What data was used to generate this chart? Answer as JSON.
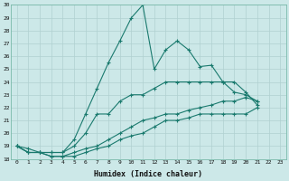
{
  "xlabel": "Humidex (Indice chaleur)",
  "bg_color": "#cce8e8",
  "line_color": "#1a7a6e",
  "grid_color": "#b0d0d0",
  "xlim": [
    -0.5,
    23.5
  ],
  "ylim": [
    18,
    30
  ],
  "yticks": [
    18,
    19,
    20,
    21,
    22,
    23,
    24,
    25,
    26,
    27,
    28,
    29,
    30
  ],
  "xticks": [
    0,
    1,
    2,
    3,
    4,
    5,
    6,
    7,
    8,
    9,
    10,
    11,
    12,
    13,
    14,
    15,
    16,
    17,
    18,
    19,
    20,
    21,
    22,
    23
  ],
  "series": [
    [
      19,
      18.8,
      18.5,
      18.5,
      18.5,
      19.5,
      21.5,
      23.5,
      25.5,
      27.2,
      29.0,
      30.0,
      25.0,
      26.5,
      27.2,
      26.5,
      25.2,
      25.3,
      24.0,
      23.2,
      23.0,
      22.5
    ],
    [
      19,
      18.5,
      18.5,
      18.5,
      18.5,
      19.0,
      20.0,
      21.5,
      21.5,
      22.5,
      23.0,
      23.0,
      23.5,
      24.0,
      24.0,
      24.0,
      24.0,
      24.0,
      24.0,
      24.0,
      23.2,
      22.2
    ],
    [
      19,
      18.5,
      18.5,
      18.2,
      18.2,
      18.5,
      18.8,
      19.0,
      19.5,
      20.0,
      20.5,
      21.0,
      21.2,
      21.5,
      21.5,
      21.8,
      22.0,
      22.2,
      22.5,
      22.5,
      22.8,
      22.5
    ],
    [
      19,
      18.5,
      18.5,
      18.2,
      18.2,
      18.2,
      18.5,
      18.8,
      19.0,
      19.5,
      19.8,
      20.0,
      20.5,
      21.0,
      21.0,
      21.2,
      21.5,
      21.5,
      21.5,
      21.5,
      21.5,
      22.0
    ]
  ]
}
